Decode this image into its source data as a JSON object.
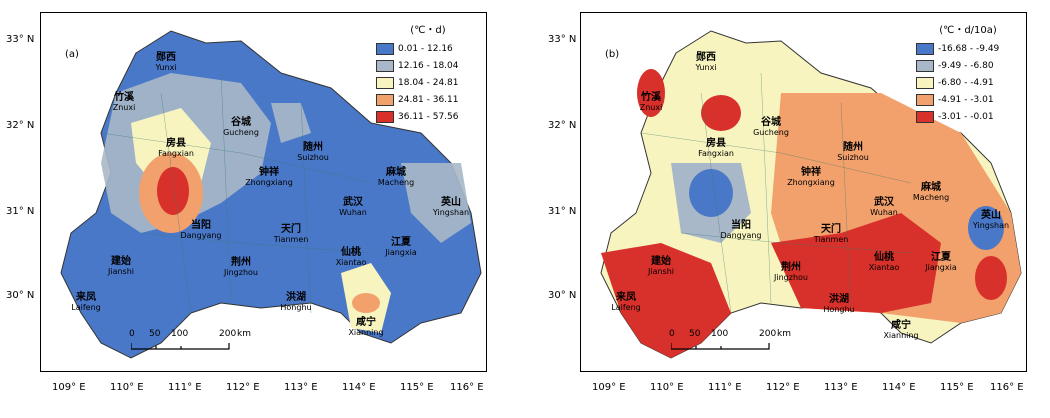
{
  "panels": [
    {
      "tag": "(a)",
      "legend_title": "(℃・d)",
      "legend": [
        {
          "label": "0.01 - 12.16",
          "color": "#4a78c8"
        },
        {
          "label": "12.16 - 18.04",
          "color": "#a8b8c8"
        },
        {
          "label": "18.04 - 24.81",
          "color": "#f8f4c0"
        },
        {
          "label": "24.81 - 36.11",
          "color": "#f2a06c"
        },
        {
          "label": "36.11 - 57.56",
          "color": "#d8302a"
        }
      ]
    },
    {
      "tag": "(b)",
      "legend_title": "(℃・d/10a)",
      "legend": [
        {
          "label": "-16.68 - -9.49",
          "color": "#4a78c8"
        },
        {
          "label": "-9.49 - -6.80",
          "color": "#a8b8c8"
        },
        {
          "label": "-6.80 - -4.91",
          "color": "#f8f4c0"
        },
        {
          "label": "-4.91 - -3.01",
          "color": "#f2a06c"
        },
        {
          "label": "-3.01 - -0.01",
          "color": "#d8302a"
        }
      ]
    }
  ],
  "lat_ticks": [
    "33° N",
    "32° N",
    "31° N",
    "30° N"
  ],
  "lon_ticks": [
    "109° E",
    "110° E",
    "111° E",
    "112° E",
    "113° E",
    "114° E",
    "115° E",
    "116° E"
  ],
  "scale": {
    "labels": [
      "0",
      "50",
      "100",
      "200"
    ],
    "unit": "km"
  },
  "cities": [
    {
      "cn": "郧西",
      "en": "Yunxi"
    },
    {
      "cn": "竹溪",
      "en": "Znuxi"
    },
    {
      "cn": "谷城",
      "en": "Gucheng"
    },
    {
      "cn": "随州",
      "en": "Suizhou"
    },
    {
      "cn": "房县",
      "en": "Fangxian"
    },
    {
      "cn": "钟祥",
      "en": "Zhongxiang"
    },
    {
      "cn": "麻城",
      "en": "Macheng"
    },
    {
      "cn": "英山",
      "en": "Yingshan"
    },
    {
      "cn": "武汉",
      "en": "Wuhan"
    },
    {
      "cn": "当阳",
      "en": "Dangyang"
    },
    {
      "cn": "天门",
      "en": "Tianmen"
    },
    {
      "cn": "建始",
      "en": "Jianshi"
    },
    {
      "cn": "仙桃",
      "en": "Xiantao"
    },
    {
      "cn": "江夏",
      "en": "Jiangxia"
    },
    {
      "cn": "荆州",
      "en": "Jingzhou"
    },
    {
      "cn": "来凤",
      "en": "Laifeng"
    },
    {
      "cn": "洪湖",
      "en": "Honghu"
    },
    {
      "cn": "咸宁",
      "en": "Xianning"
    }
  ]
}
